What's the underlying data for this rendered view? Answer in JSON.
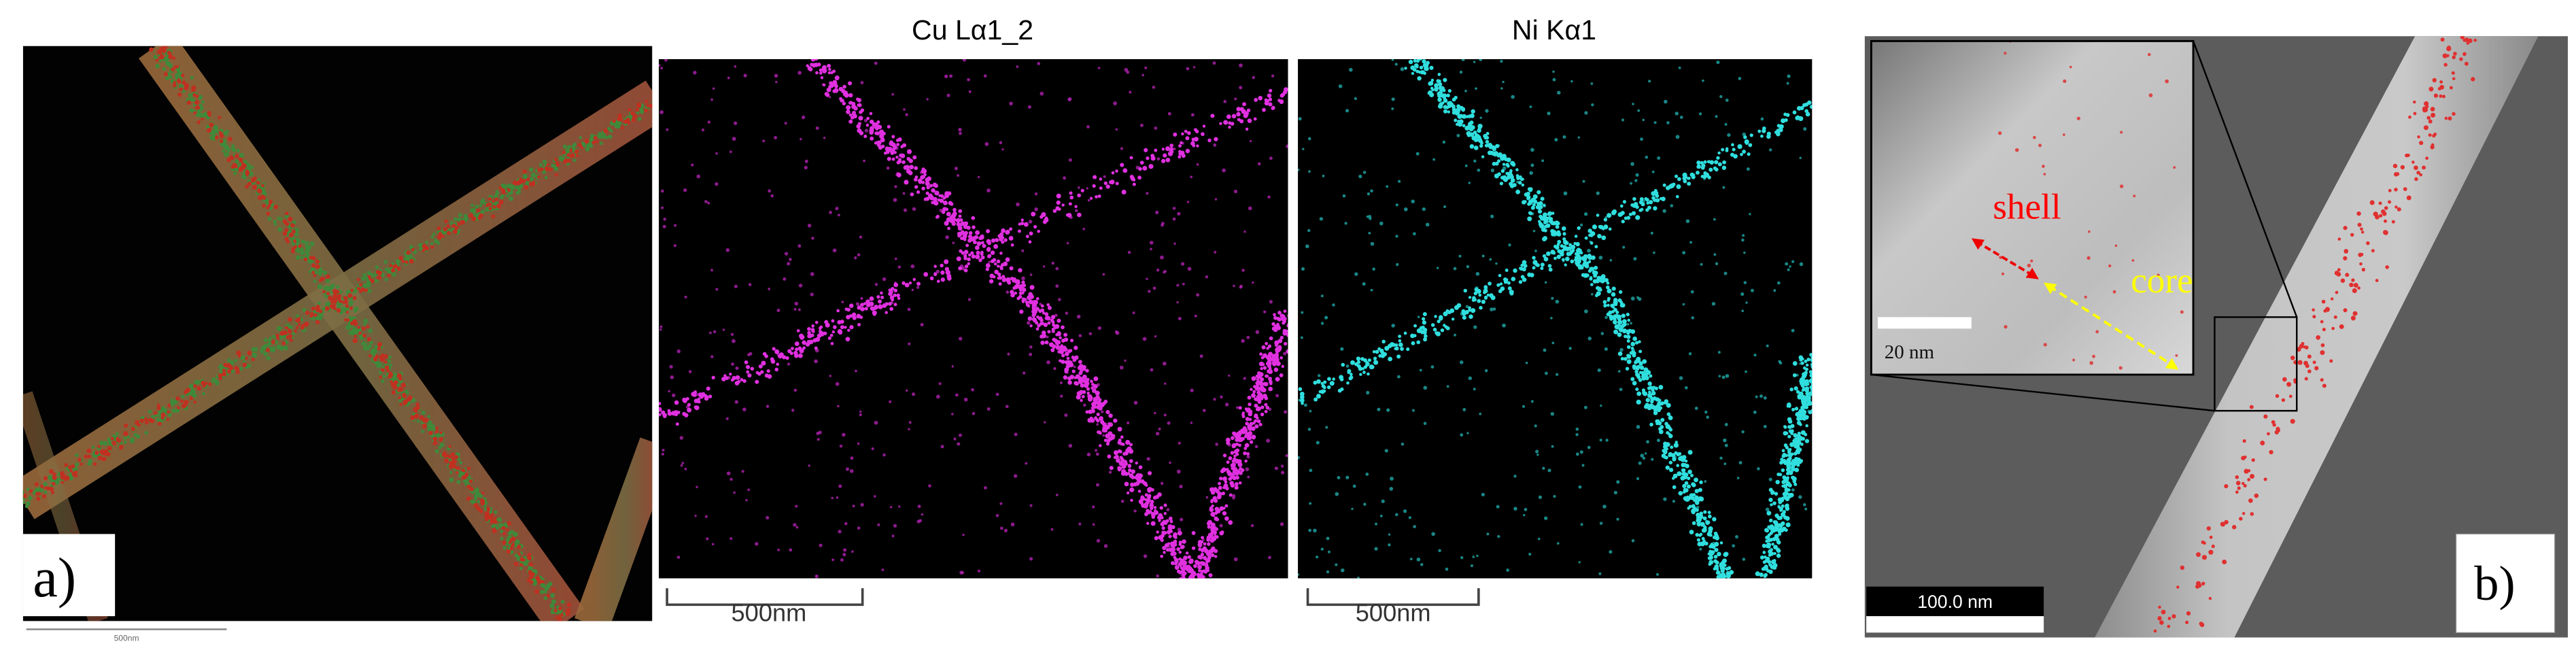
{
  "panel_a": {
    "label": "a)",
    "scale_bar": "500nm",
    "maps": [
      {
        "title": "Cu Lα1_2",
        "scale_bar": "500nm"
      },
      {
        "title": "Ni Kα1",
        "scale_bar": "500nm"
      }
    ]
  },
  "panel_b": {
    "label": "b)",
    "scale_bar": "100.0 nm",
    "inset": {
      "scale_bar": "20 nm",
      "shell": "shell",
      "core": "core"
    }
  }
}
